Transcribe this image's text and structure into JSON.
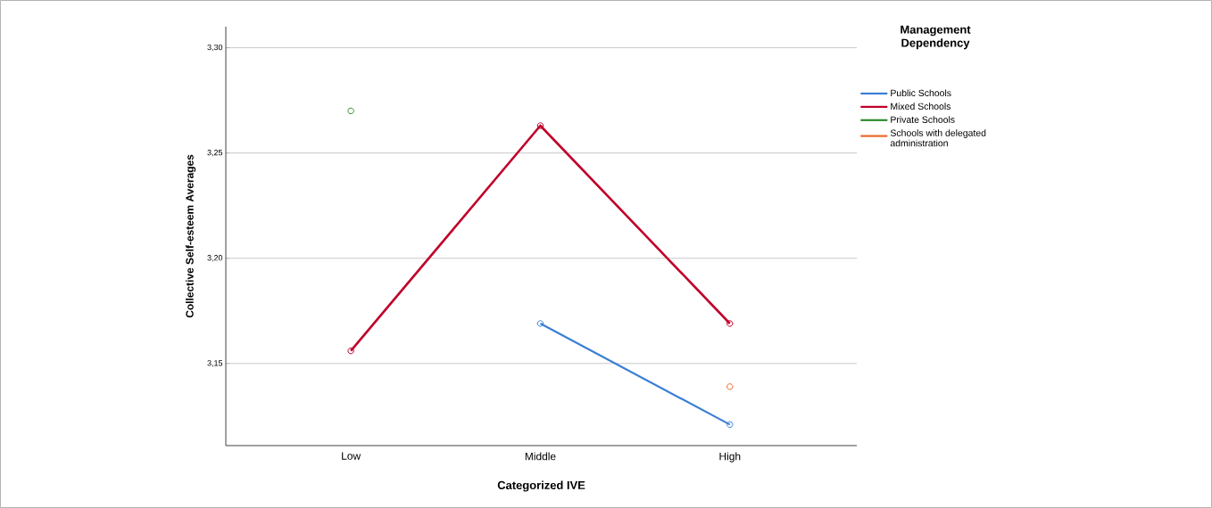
{
  "chart_data": {
    "type": "line",
    "xlabel": "Categorized IVE",
    "ylabel": "Collective Self-esteem Averages",
    "legend_title": "Management Dependency",
    "categories": [
      "Low",
      "Middle",
      "High"
    ],
    "series": [
      {
        "name": "Public Schools",
        "color": "#3a7fd5",
        "values": [
          null,
          3.169,
          3.121
        ]
      },
      {
        "name": "Mixed Schools",
        "color": "#c0002a",
        "values": [
          3.156,
          3.263,
          3.169
        ]
      },
      {
        "name": "Private Schools",
        "color": "#2e8b2e",
        "values": [
          3.27,
          null,
          null
        ]
      },
      {
        "name": "Schools with delegated administration",
        "color": "#e8692a",
        "values": [
          null,
          null,
          3.139
        ]
      }
    ],
    "ylim": [
      3.111,
      3.31
    ],
    "yticks": [
      {
        "value": 3.15,
        "label": "3,15"
      },
      {
        "value": 3.2,
        "label": "3,20"
      },
      {
        "value": 3.25,
        "label": "3,25"
      },
      {
        "value": 3.3,
        "label": "3,30"
      }
    ],
    "grid": "y",
    "legend": "top right",
    "marker": "circle",
    "line_style": "solid"
  }
}
